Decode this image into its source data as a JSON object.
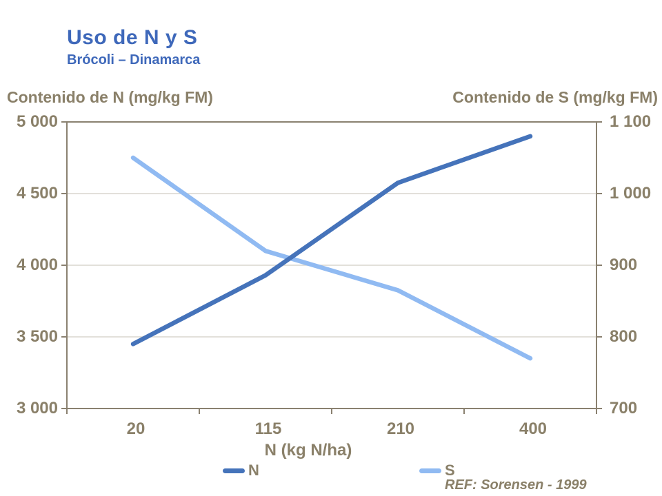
{
  "title": "Uso de N y S",
  "subtitle": "Brócoli – Dinamarca",
  "reference": "REF: Sorensen - 1999",
  "colors": {
    "title_blue": "#3E68BA",
    "text_brown": "#8A8069",
    "gridline": "#D9D5CD",
    "plot_border": "#8A8170",
    "n_line": "#4573BA",
    "s_line": "#90BAF2"
  },
  "chart_data": {
    "type": "line",
    "title": "Uso de N y S — Brócoli – Dinamarca",
    "categories": [
      "20",
      "115",
      "210",
      "400"
    ],
    "x_axis_title": "N (kg N/ha)",
    "left_axis": {
      "title": "Contenido de N (mg/kg FM)",
      "ticks": [
        "5 000",
        "4 500",
        "4 000",
        "3 500",
        "3 000"
      ],
      "range": [
        3000,
        5000
      ]
    },
    "right_axis": {
      "title": "Contenido de S (mg/kg FM)",
      "ticks": [
        "1 100",
        "1 000",
        "900",
        "800",
        "700"
      ],
      "range": [
        700,
        1100
      ]
    },
    "series": [
      {
        "name": "N",
        "axis": "left",
        "color": "#4573BA",
        "values": [
          3450,
          3930,
          4575,
          4900
        ]
      },
      {
        "name": "S",
        "axis": "right",
        "color": "#90BAF2",
        "values": [
          1050,
          920,
          865,
          770
        ]
      }
    ],
    "grid": true,
    "legend_position": "bottom"
  }
}
